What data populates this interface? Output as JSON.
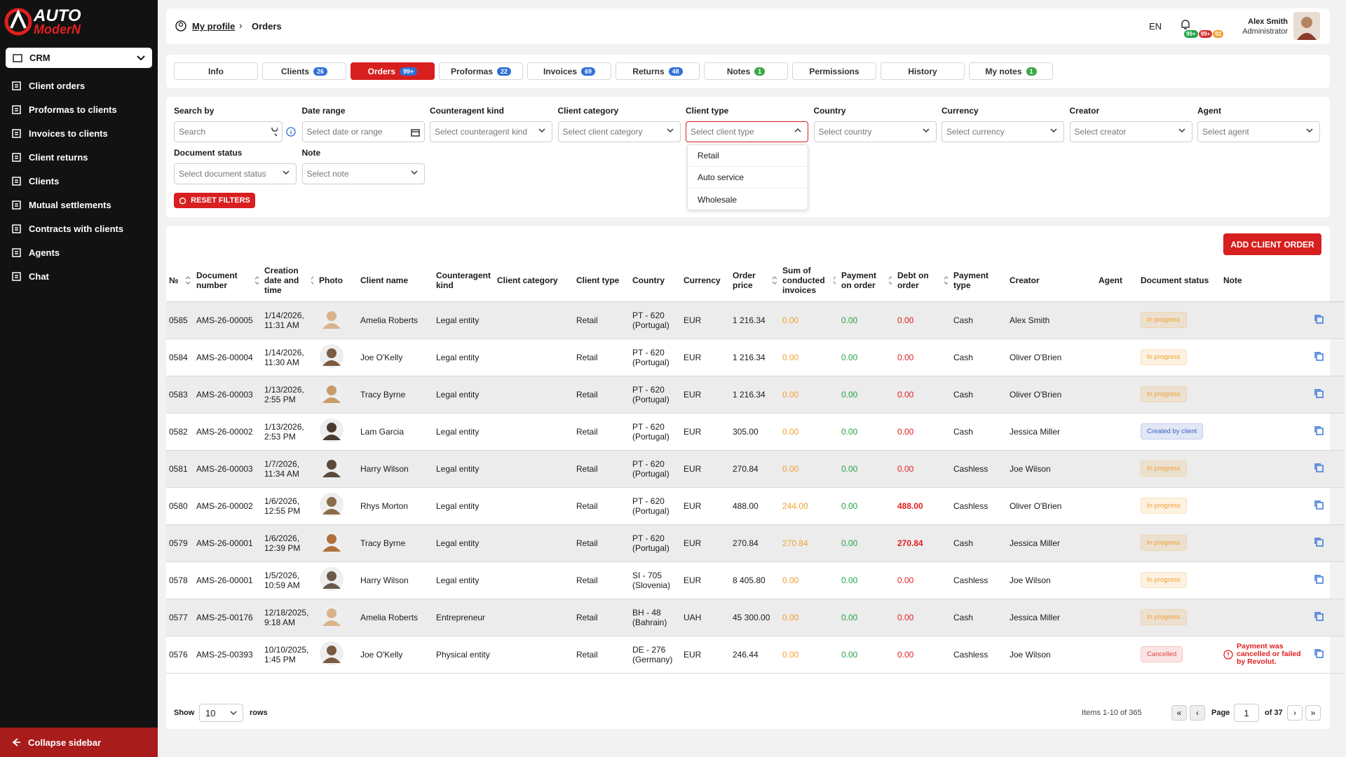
{
  "logo": {
    "line1": "AUTO",
    "line2": "ModerN"
  },
  "sidebar": {
    "module": "CRM",
    "items": [
      "Client orders",
      "Proformas to clients",
      "Invoices to clients",
      "Client returns",
      "Clients",
      "Mutual settlements",
      "Contracts with clients",
      "Agents",
      "Chat"
    ],
    "collapse": "Collapse sidebar"
  },
  "breadcrumb": {
    "parent": "My profile",
    "current": "Orders"
  },
  "topbar": {
    "language": "EN",
    "badges": [
      {
        "text": "99+",
        "color": "#22a447"
      },
      {
        "text": "99+",
        "color": "#d32f2f"
      },
      {
        "text": "92",
        "color": "#f0a030"
      }
    ],
    "user_name": "Alex Smith",
    "user_role": "Administrator"
  },
  "tabs": [
    {
      "label": "Info"
    },
    {
      "label": "Clients",
      "count": "26",
      "badge_color": "#2f6fd6"
    },
    {
      "label": "Orders",
      "count": "99+",
      "badge_color": "#2f6fd6",
      "active": true
    },
    {
      "label": "Proformas",
      "count": "22",
      "badge_color": "#2f6fd6"
    },
    {
      "label": "Invoices",
      "count": "69",
      "badge_color": "#2f6fd6"
    },
    {
      "label": "Returns",
      "count": "48",
      "badge_color": "#2f6fd6"
    },
    {
      "label": "Notes",
      "count": "1",
      "badge_color": "#3aa845"
    },
    {
      "label": "Permissions"
    },
    {
      "label": "History"
    },
    {
      "label": "My notes",
      "count": "1",
      "badge_color": "#3aa845"
    }
  ],
  "filters": [
    {
      "label": "Search by",
      "placeholder": "Search"
    },
    {
      "label": "Date range",
      "placeholder": "Select date or range"
    },
    {
      "label": "Counteragent kind",
      "placeholder": "Select counteragent kind"
    },
    {
      "label": "Client category",
      "placeholder": "Select client category"
    },
    {
      "label": "Client type",
      "placeholder": "Select client type",
      "open": true
    },
    {
      "label": "Country",
      "placeholder": "Select country"
    },
    {
      "label": "Currency",
      "placeholder": "Select currency"
    },
    {
      "label": "Creator",
      "placeholder": "Select creator"
    },
    {
      "label": "Agent",
      "placeholder": "Select agent"
    },
    {
      "label": "Document status",
      "placeholder": "Select document status"
    },
    {
      "label": "Note",
      "placeholder": "Select note"
    }
  ],
  "dropdown_options": [
    "Retail",
    "Auto service",
    "Wholesale"
  ],
  "reset_filters": "RESET FILTERS",
  "add_button": "ADD CLIENT ORDER",
  "table": {
    "columns": [
      "№",
      "Document number",
      "Creation date and time",
      "Photo",
      "Client name",
      "Counteragent kind",
      "Client category",
      "Client type",
      "Country",
      "Currency",
      "Order price",
      "Sum of conducted invoices",
      "Payment on order",
      "Debt on order",
      "Payment type",
      "Creator",
      "Agent",
      "Document status",
      "Note"
    ],
    "rows": [
      {
        "no": "0585",
        "doc": "AMS-26-00005",
        "created": "1/14/2026, 11:31 AM",
        "client": "Amelia Roberts",
        "kind": "Legal entity",
        "type": "Retail",
        "country": "PT - 620 (Portugal)",
        "currency": "EUR",
        "price": "1 216.34",
        "invoiced": "0.00",
        "paid": "0.00",
        "debt": "0.00",
        "payment": "Cash",
        "creator": "Alex Smith",
        "status": "In progress",
        "status_color": "#f0a030"
      },
      {
        "no": "0584",
        "doc": "AMS-26-00004",
        "created": "1/14/2026, 11:30 AM",
        "client": "Joe O'Kelly",
        "kind": "Legal entity",
        "type": "Retail",
        "country": "PT - 620 (Portugal)",
        "currency": "EUR",
        "price": "1 216.34",
        "invoiced": "0.00",
        "paid": "0.00",
        "debt": "0.00",
        "payment": "Cash",
        "creator": "Oliver O'Brien",
        "status": "In progress",
        "status_color": "#f0a030"
      },
      {
        "no": "0583",
        "doc": "AMS-26-00003",
        "created": "1/13/2026, 2:55 PM",
        "client": "Tracy Byrne",
        "kind": "Legal entity",
        "type": "Retail",
        "country": "PT - 620 (Portugal)",
        "currency": "EUR",
        "price": "1 216.34",
        "invoiced": "0.00",
        "paid": "0.00",
        "debt": "0.00",
        "payment": "Cash",
        "creator": "Oliver O'Brien",
        "status": "In progress",
        "status_color": "#f0a030"
      },
      {
        "no": "0582",
        "doc": "AMS-26-00002",
        "created": "1/13/2026, 2:53 PM",
        "client": "Lam Garcia",
        "kind": "Legal entity",
        "type": "Retail",
        "country": "PT - 620 (Portugal)",
        "currency": "EUR",
        "price": "305.00",
        "invoiced": "0.00",
        "paid": "0.00",
        "debt": "0.00",
        "payment": "Cash",
        "creator": "Jessica Miller",
        "status": "Created by client",
        "status_color": "#3b5fc4"
      },
      {
        "no": "0581",
        "doc": "AMS-26-00003",
        "created": "1/7/2026, 11:34 AM",
        "client": "Harry Wilson",
        "kind": "Legal entity",
        "type": "Retail",
        "country": "PT - 620 (Portugal)",
        "currency": "EUR",
        "price": "270.84",
        "invoiced": "0.00",
        "paid": "0.00",
        "debt": "0.00",
        "payment": "Cashless",
        "creator": "Joe Wilson",
        "status": "In progress",
        "status_color": "#f0a030"
      },
      {
        "no": "0580",
        "doc": "AMS-26-00002",
        "created": "1/6/2026, 12:55 PM",
        "client": "Rhys Morton",
        "kind": "Legal entity",
        "type": "Retail",
        "country": "PT - 620 (Portugal)",
        "currency": "EUR",
        "price": "488.00",
        "invoiced": "244.00",
        "paid": "0.00",
        "debt": "488.00",
        "payment": "Cashless",
        "creator": "Oliver O'Brien",
        "status": "In progress",
        "status_color": "#f0a030"
      },
      {
        "no": "0579",
        "doc": "AMS-26-00001",
        "created": "1/6/2026, 12:39 PM",
        "client": "Tracy Byrne",
        "kind": "Legal entity",
        "type": "Retail",
        "country": "PT - 620 (Portugal)",
        "currency": "EUR",
        "price": "270.84",
        "invoiced": "270.84",
        "paid": "0.00",
        "debt": "270.84",
        "payment": "Cash",
        "creator": "Jessica Miller",
        "status": "In progress",
        "status_color": "#f0a030"
      },
      {
        "no": "0578",
        "doc": "AMS-26-00001",
        "created": "1/5/2026, 10:59 AM",
        "client": "Harry Wilson",
        "kind": "Legal entity",
        "type": "Retail",
        "country": "SI - 705 (Slovenia)",
        "currency": "EUR",
        "price": "8 405.80",
        "invoiced": "0.00",
        "paid": "0.00",
        "debt": "0.00",
        "payment": "Cashless",
        "creator": "Joe Wilson",
        "status": "In progress",
        "status_color": "#f0a030"
      },
      {
        "no": "0577",
        "doc": "AMS-25-00176",
        "created": "12/18/2025, 9:18 AM",
        "client": "Amelia Roberts",
        "kind": "Entrepreneur",
        "type": "Retail",
        "country": "BH - 48 (Bahrain)",
        "currency": "UAH",
        "price": "45 300.00",
        "invoiced": "0.00",
        "paid": "0.00",
        "debt": "0.00",
        "payment": "Cash",
        "creator": "Jessica Miller",
        "status": "In progress",
        "status_color": "#f0a030"
      },
      {
        "no": "0576",
        "doc": "AMS-25-00393",
        "created": "10/10/2025, 1:45 PM",
        "client": "Joe O'Kelly",
        "kind": "Physical entity",
        "type": "Retail",
        "country": "DE - 276 (Germany)",
        "currency": "EUR",
        "price": "246.44",
        "invoiced": "0.00",
        "paid": "0.00",
        "debt": "0.00",
        "payment": "Cashless",
        "creator": "Joe Wilson",
        "status": "Cancelled",
        "status_color": "#e04848",
        "note": "Payment was cancelled or failed by Revolut."
      }
    ]
  },
  "pagination": {
    "show": "Show",
    "page_size": "10",
    "rows": "rows",
    "items": "Items 1-10 of 365",
    "page": "Page",
    "current_page": "1",
    "of_pages": "of 37"
  }
}
